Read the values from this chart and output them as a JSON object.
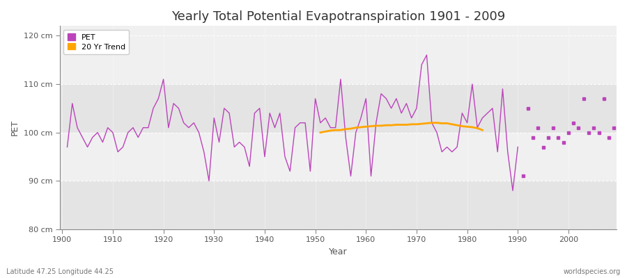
{
  "title": "Yearly Total Potential Evapotranspiration 1901 - 2009",
  "xlabel": "Year",
  "ylabel": "PET",
  "bottom_left_label": "Latitude 47.25 Longitude 44.25",
  "bottom_right_label": "worldspecies.org",
  "pet_color": "#BB44BB",
  "trend_color": "#FFA500",
  "fig_bg_color": "#FFFFFF",
  "plot_bg_color": "#F0F0F0",
  "band_color": "#E4E4E4",
  "ylim": [
    80,
    122
  ],
  "xlim": [
    1899.5,
    2009.5
  ],
  "yticks": [
    80,
    90,
    100,
    110,
    120
  ],
  "ytick_labels": [
    "80 cm",
    "90 cm",
    "100 cm",
    "110 cm",
    "120 cm"
  ],
  "years": [
    1901,
    1902,
    1903,
    1904,
    1905,
    1906,
    1907,
    1908,
    1909,
    1910,
    1911,
    1912,
    1913,
    1914,
    1915,
    1916,
    1917,
    1918,
    1919,
    1920,
    1921,
    1922,
    1923,
    1924,
    1925,
    1926,
    1927,
    1928,
    1929,
    1930,
    1931,
    1932,
    1933,
    1934,
    1935,
    1936,
    1937,
    1938,
    1939,
    1940,
    1941,
    1942,
    1943,
    1944,
    1945,
    1946,
    1947,
    1948,
    1949,
    1950,
    1951,
    1952,
    1953,
    1954,
    1955,
    1956,
    1957,
    1958,
    1959,
    1960,
    1961,
    1962,
    1963,
    1964,
    1965,
    1966,
    1967,
    1968,
    1969,
    1970,
    1971,
    1972,
    1973,
    1974,
    1975,
    1976,
    1977,
    1978,
    1979,
    1980,
    1981,
    1982,
    1983,
    1984,
    1985,
    1986,
    1987,
    1988,
    1989,
    1990,
    1991,
    1992,
    1993,
    1994,
    1995,
    1996,
    1997,
    1998,
    1999,
    2000,
    2001,
    2002,
    2003,
    2004,
    2005,
    2006,
    2007,
    2008,
    2009
  ],
  "pet_values": [
    97,
    106,
    101,
    99,
    97,
    99,
    100,
    98,
    101,
    100,
    96,
    97,
    100,
    101,
    99,
    101,
    101,
    105,
    107,
    111,
    101,
    106,
    105,
    102,
    101,
    102,
    100,
    96,
    90,
    103,
    98,
    105,
    104,
    97,
    98,
    97,
    93,
    104,
    105,
    95,
    104,
    101,
    104,
    95,
    92,
    101,
    102,
    102,
    92,
    107,
    102,
    103,
    101,
    101,
    111,
    99,
    91,
    100,
    103,
    107,
    91,
    102,
    108,
    107,
    105,
    107,
    104,
    106,
    103,
    105,
    114,
    116,
    102,
    100,
    96,
    97,
    96,
    97,
    104,
    102,
    110,
    101,
    103,
    104,
    105,
    96,
    109,
    96,
    88,
    97,
    91,
    105,
    99,
    101,
    97,
    99,
    101,
    99,
    98,
    100,
    102,
    101,
    107,
    100,
    101,
    100,
    107,
    99,
    101
  ],
  "connected_end_year": 1990,
  "trend_years": [
    1951,
    1952,
    1953,
    1954,
    1955,
    1956,
    1957,
    1958,
    1959,
    1960,
    1961,
    1962,
    1963,
    1964,
    1965,
    1966,
    1967,
    1968,
    1969,
    1970,
    1971,
    1972,
    1973,
    1974,
    1975,
    1976,
    1977,
    1978,
    1979,
    1980,
    1981,
    1982,
    1983
  ],
  "trend_values": [
    100.0,
    100.2,
    100.4,
    100.5,
    100.5,
    100.7,
    100.8,
    101.0,
    101.1,
    101.2,
    101.3,
    101.4,
    101.4,
    101.5,
    101.5,
    101.6,
    101.6,
    101.6,
    101.7,
    101.7,
    101.8,
    101.9,
    102.0,
    102.0,
    101.9,
    101.9,
    101.7,
    101.5,
    101.3,
    101.2,
    101.1,
    100.9,
    100.5
  ],
  "legend_pet_label": "PET",
  "legend_trend_label": "20 Yr Trend",
  "title_fontsize": 13,
  "axis_label_fontsize": 9,
  "tick_fontsize": 8,
  "legend_fontsize": 8
}
